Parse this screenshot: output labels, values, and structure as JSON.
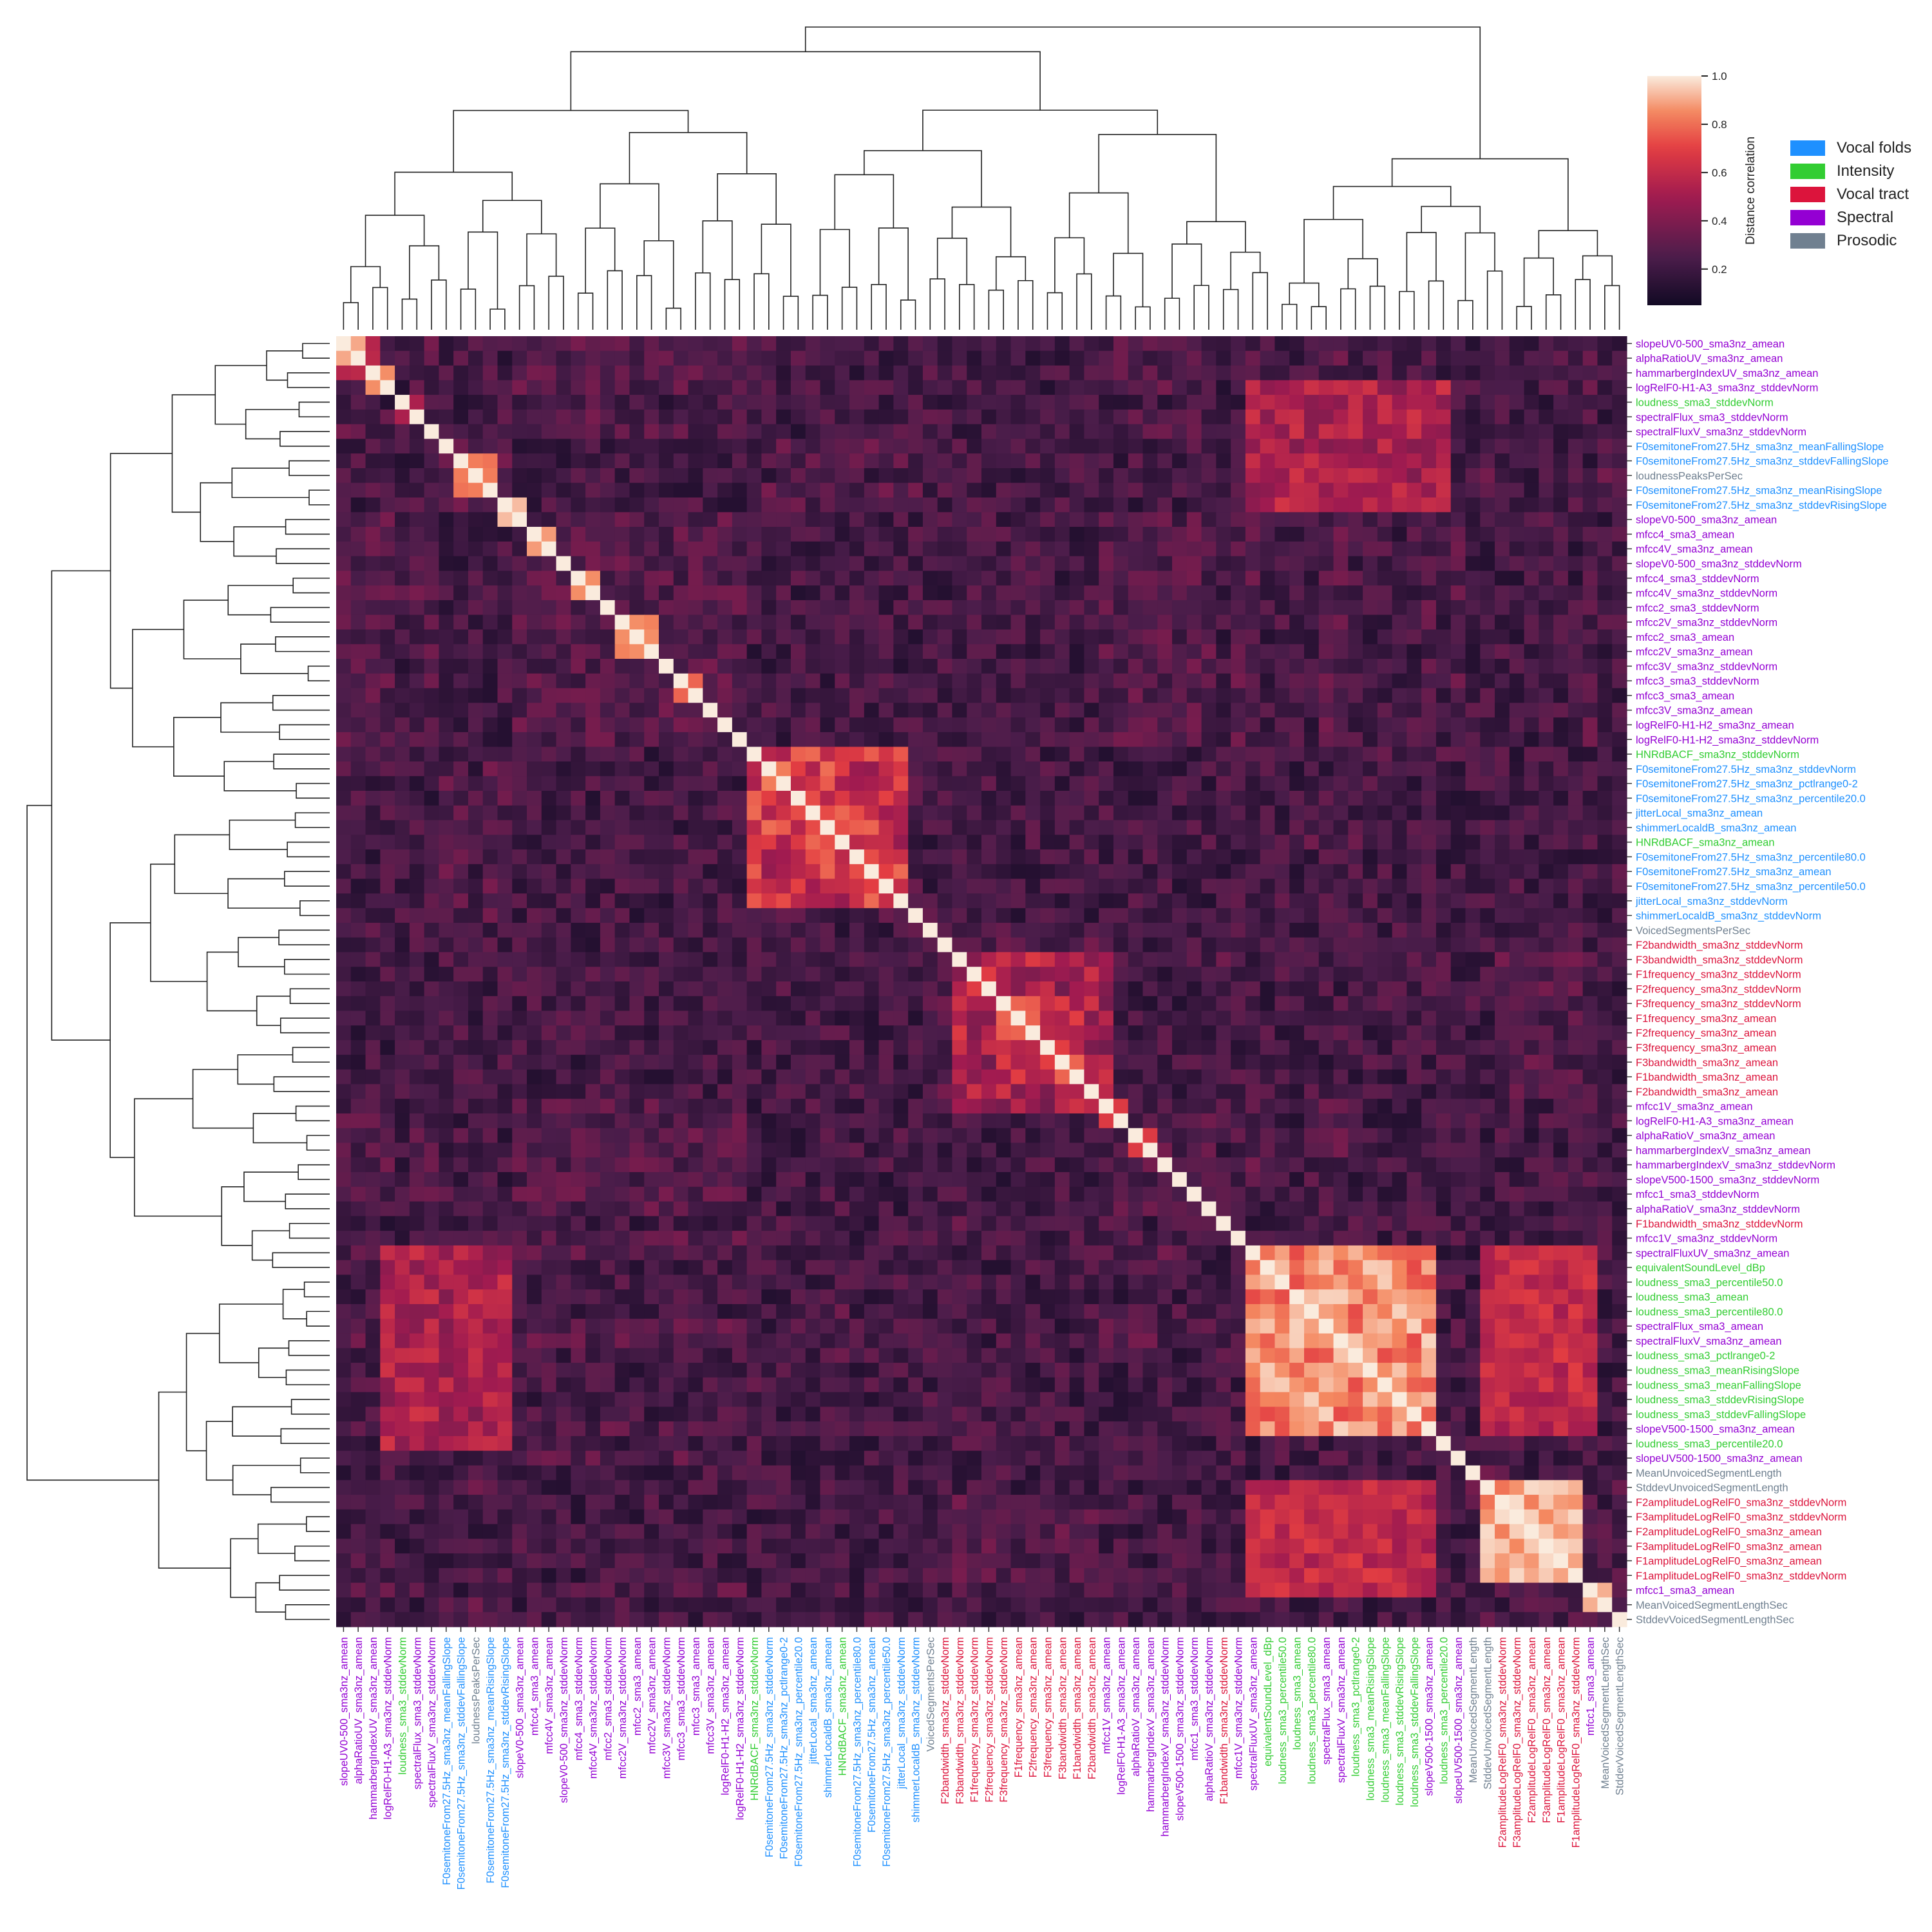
{
  "chart_data": {
    "type": "heatmap",
    "colorbar": {
      "label": "Distance correlation",
      "ticks": [
        0.2,
        0.4,
        0.6,
        0.8,
        1.0
      ],
      "range": [
        0.05,
        1.0
      ]
    },
    "legend": [
      {
        "label": "Vocal folds",
        "color": "#1e90ff"
      },
      {
        "label": "Intensity",
        "color": "#32cd32"
      },
      {
        "label": "Vocal tract",
        "color": "#dc143c"
      },
      {
        "label": "Spectral",
        "color": "#9400d3"
      },
      {
        "label": "Prosodic",
        "color": "#708090"
      }
    ],
    "groups": [
      "Vocal folds",
      "Intensity",
      "Vocal tract",
      "Spectral",
      "Prosodic"
    ],
    "features": [
      [
        "slopeUV0-500_sma3nz_amean",
        3
      ],
      [
        "alphaRatioUV_sma3nz_amean",
        3
      ],
      [
        "hammarbergIndexUV_sma3nz_amean",
        3
      ],
      [
        "logRelF0-H1-A3_sma3nz_stddevNorm",
        3
      ],
      [
        "loudness_sma3_stddevNorm",
        1
      ],
      [
        "spectralFlux_sma3_stddevNorm",
        3
      ],
      [
        "spectralFluxV_sma3nz_stddevNorm",
        3
      ],
      [
        "F0semitoneFrom27.5Hz_sma3nz_meanFallingSlope",
        0
      ],
      [
        "F0semitoneFrom27.5Hz_sma3nz_stddevFallingSlope",
        0
      ],
      [
        "loudnessPeaksPerSec",
        4
      ],
      [
        "F0semitoneFrom27.5Hz_sma3nz_meanRisingSlope",
        0
      ],
      [
        "F0semitoneFrom27.5Hz_sma3nz_stddevRisingSlope",
        0
      ],
      [
        "slopeV0-500_sma3nz_amean",
        3
      ],
      [
        "mfcc4_sma3_amean",
        3
      ],
      [
        "mfcc4V_sma3nz_amean",
        3
      ],
      [
        "slopeV0-500_sma3nz_stddevNorm",
        3
      ],
      [
        "mfcc4_sma3_stddevNorm",
        3
      ],
      [
        "mfcc4V_sma3nz_stddevNorm",
        3
      ],
      [
        "mfcc2_sma3_stddevNorm",
        3
      ],
      [
        "mfcc2V_sma3nz_stddevNorm",
        3
      ],
      [
        "mfcc2_sma3_amean",
        3
      ],
      [
        "mfcc2V_sma3nz_amean",
        3
      ],
      [
        "mfcc3V_sma3nz_stddevNorm",
        3
      ],
      [
        "mfcc3_sma3_stddevNorm",
        3
      ],
      [
        "mfcc3_sma3_amean",
        3
      ],
      [
        "mfcc3V_sma3nz_amean",
        3
      ],
      [
        "logRelF0-H1-H2_sma3nz_amean",
        3
      ],
      [
        "logRelF0-H1-H2_sma3nz_stddevNorm",
        3
      ],
      [
        "HNRdBACF_sma3nz_stddevNorm",
        1
      ],
      [
        "F0semitoneFrom27.5Hz_sma3nz_stddevNorm",
        0
      ],
      [
        "F0semitoneFrom27.5Hz_sma3nz_pctlrange0-2",
        0
      ],
      [
        "F0semitoneFrom27.5Hz_sma3nz_percentile20.0",
        0
      ],
      [
        "jitterLocal_sma3nz_amean",
        0
      ],
      [
        "shimmerLocaldB_sma3nz_amean",
        0
      ],
      [
        "HNRdBACF_sma3nz_amean",
        1
      ],
      [
        "F0semitoneFrom27.5Hz_sma3nz_percentile80.0",
        0
      ],
      [
        "F0semitoneFrom27.5Hz_sma3nz_amean",
        0
      ],
      [
        "F0semitoneFrom27.5Hz_sma3nz_percentile50.0",
        0
      ],
      [
        "jitterLocal_sma3nz_stddevNorm",
        0
      ],
      [
        "shimmerLocaldB_sma3nz_stddevNorm",
        0
      ],
      [
        "VoicedSegmentsPerSec",
        4
      ],
      [
        "F2bandwidth_sma3nz_stddevNorm",
        2
      ],
      [
        "F3bandwidth_sma3nz_stddevNorm",
        2
      ],
      [
        "F1frequency_sma3nz_stddevNorm",
        2
      ],
      [
        "F2frequency_sma3nz_stddevNorm",
        2
      ],
      [
        "F3frequency_sma3nz_stddevNorm",
        2
      ],
      [
        "F1frequency_sma3nz_amean",
        2
      ],
      [
        "F2frequency_sma3nz_amean",
        2
      ],
      [
        "F3frequency_sma3nz_amean",
        2
      ],
      [
        "F3bandwidth_sma3nz_amean",
        2
      ],
      [
        "F1bandwidth_sma3nz_amean",
        2
      ],
      [
        "F2bandwidth_sma3nz_amean",
        2
      ],
      [
        "mfcc1V_sma3nz_amean",
        3
      ],
      [
        "logRelF0-H1-A3_sma3nz_amean",
        3
      ],
      [
        "alphaRatioV_sma3nz_amean",
        3
      ],
      [
        "hammarbergIndexV_sma3nz_amean",
        3
      ],
      [
        "hammarbergIndexV_sma3nz_stddevNorm",
        3
      ],
      [
        "slopeV500-1500_sma3nz_stddevNorm",
        3
      ],
      [
        "mfcc1_sma3_stddevNorm",
        3
      ],
      [
        "alphaRatioV_sma3nz_stddevNorm",
        3
      ],
      [
        "F1bandwidth_sma3nz_stddevNorm",
        2
      ],
      [
        "mfcc1V_sma3nz_stddevNorm",
        3
      ],
      [
        "spectralFluxUV_sma3nz_amean",
        3
      ],
      [
        "equivalentSoundLevel_dBp",
        1
      ],
      [
        "loudness_sma3_percentile50.0",
        1
      ],
      [
        "loudness_sma3_amean",
        1
      ],
      [
        "loudness_sma3_percentile80.0",
        1
      ],
      [
        "spectralFlux_sma3_amean",
        3
      ],
      [
        "spectralFluxV_sma3nz_amean",
        3
      ],
      [
        "loudness_sma3_pctlrange0-2",
        1
      ],
      [
        "loudness_sma3_meanRisingSlope",
        1
      ],
      [
        "loudness_sma3_meanFallingSlope",
        1
      ],
      [
        "loudness_sma3_stddevRisingSlope",
        1
      ],
      [
        "loudness_sma3_stddevFallingSlope",
        1
      ],
      [
        "slopeV500-1500_sma3nz_amean",
        3
      ],
      [
        "loudness_sma3_percentile20.0",
        1
      ],
      [
        "slopeUV500-1500_sma3nz_amean",
        3
      ],
      [
        "MeanUnvoicedSegmentLength",
        4
      ],
      [
        "StddevUnvoicedSegmentLength",
        4
      ],
      [
        "F2amplitudeLogRelF0_sma3nz_stddevNorm",
        2
      ],
      [
        "F3amplitudeLogRelF0_sma3nz_stddevNorm",
        2
      ],
      [
        "F2amplitudeLogRelF0_sma3nz_amean",
        2
      ],
      [
        "F3amplitudeLogRelF0_sma3nz_amean",
        2
      ],
      [
        "F1amplitudeLogRelF0_sma3nz_amean",
        2
      ],
      [
        "F1amplitudeLogRelF0_sma3nz_stddevNorm",
        2
      ],
      [
        "mfcc1_sma3_amean",
        3
      ],
      [
        "MeanVoicedSegmentLengthSec",
        4
      ],
      [
        "StddevVoicedSegmentLengthSec",
        4
      ]
    ],
    "clusters": [
      [
        0,
        1,
        0.92
      ],
      [
        2,
        3,
        0.88
      ],
      [
        4,
        5,
        0.55
      ],
      [
        8,
        10,
        0.85
      ],
      [
        11,
        12,
        0.95
      ],
      [
        13,
        14,
        0.9
      ],
      [
        16,
        17,
        0.88
      ],
      [
        19,
        21,
        0.88
      ],
      [
        23,
        24,
        0.8
      ],
      [
        29,
        30,
        0.85
      ],
      [
        31,
        32,
        0.75
      ],
      [
        35,
        36,
        0.75
      ],
      [
        36,
        37,
        0.72
      ],
      [
        45,
        47,
        0.8
      ],
      [
        49,
        50,
        0.8
      ],
      [
        52,
        53,
        0.7
      ],
      [
        54,
        55,
        0.7
      ],
      [
        63,
        64,
        0.92
      ],
      [
        65,
        66,
        0.95
      ],
      [
        68,
        69,
        0.9
      ],
      [
        69,
        70,
        0.93
      ],
      [
        71,
        72,
        0.9
      ],
      [
        72,
        73,
        0.9
      ],
      [
        79,
        80,
        0.95
      ],
      [
        81,
        82,
        0.97
      ],
      [
        82,
        83,
        0.96
      ],
      [
        85,
        86,
        0.93
      ],
      [
        0,
        2,
        0.6
      ],
      [
        29,
        37,
        0.6
      ],
      [
        63,
        73,
        0.75
      ],
      [
        79,
        84,
        0.8
      ],
      [
        45,
        50,
        0.6
      ]
    ],
    "background_level": 0.22
  }
}
